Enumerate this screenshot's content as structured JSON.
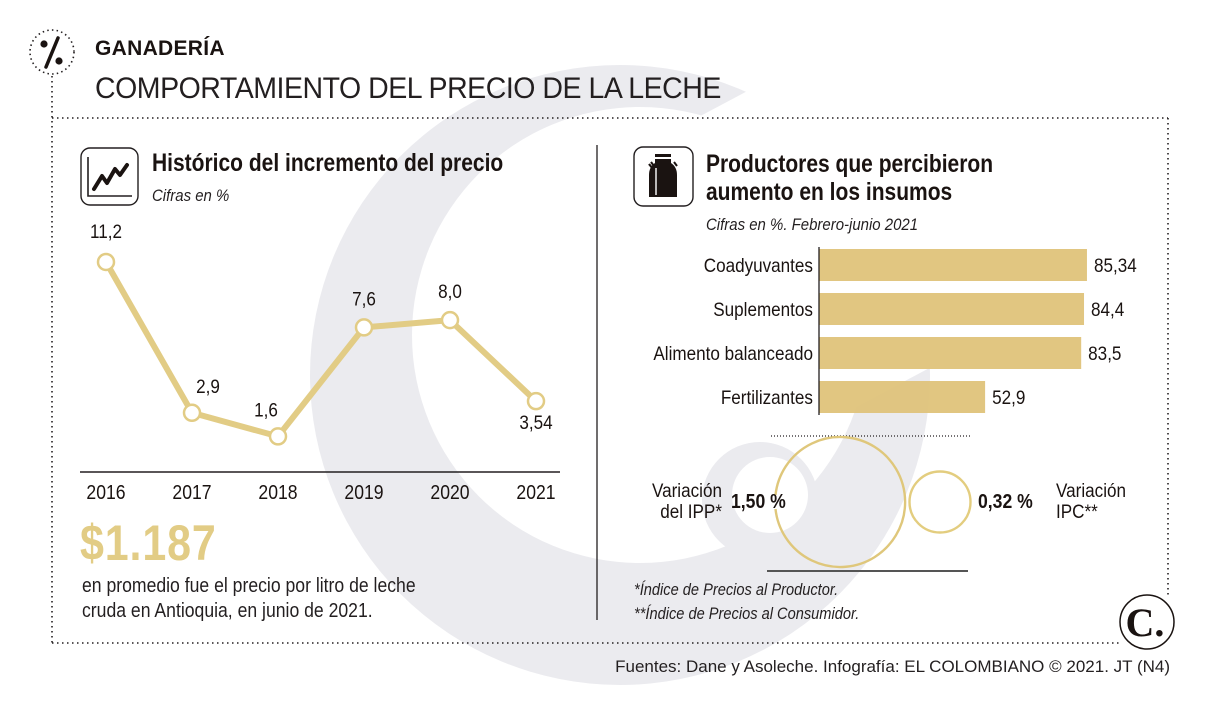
{
  "header": {
    "section_icon": "percent-icon",
    "kicker": "GANADERÍA",
    "headline": "COMPORTAMIENTO DEL PRECIO DE LA LECHE"
  },
  "colors": {
    "accent_gold": "#e2cc85",
    "bar_gold": "#dfc37a",
    "watermark_gray": "#ebebef",
    "text_dark": "#1a1311"
  },
  "left_panel": {
    "icon": "line-chart-icon",
    "title": "Histórico del incremento del precio",
    "subtitle": "Cifras en %",
    "price_highlight": "$1.187",
    "description_line1": "en promedio fue el precio por litro de leche",
    "description_line2": "cruda en Antioquia, en junio de 2021."
  },
  "right_panel": {
    "icon": "milk-can-icon",
    "title_line1": "Productores que percibieron",
    "title_line2": "aumento en los insumos",
    "subtitle": "Cifras en %. Febrero-junio 2021",
    "ipp": {
      "label_line1": "Variación",
      "label_line2": "del IPP*",
      "value": "1,50 %",
      "numeric": 1.5
    },
    "ipc": {
      "label_line1": "Variación",
      "label_line2": "IPC**",
      "value": "0,32 %",
      "numeric": 0.32
    },
    "footnote1": "*Índice de Precios al Productor.",
    "footnote2": "**Índice de Precios al Consumidor."
  },
  "footer": {
    "credits": "Fuentes: Dane y Asoleche. Infografía: EL COLOMBIANO © 2021. JT (N4)",
    "logo_letter": "C."
  },
  "chart_data": [
    {
      "type": "line",
      "title": "Histórico del incremento del precio",
      "subtitle": "Cifras en %",
      "xlabel": "",
      "ylabel": "",
      "categories": [
        "2016",
        "2017",
        "2018",
        "2019",
        "2020",
        "2021"
      ],
      "values": [
        11.2,
        2.9,
        1.6,
        7.6,
        8.0,
        3.54
      ],
      "value_labels": [
        "11,2",
        "2,9",
        "1,6",
        "7,6",
        "8,0",
        "3,54"
      ],
      "ylim": [
        0,
        12
      ],
      "grid": false,
      "legend": "none"
    },
    {
      "type": "bar",
      "orientation": "horizontal",
      "title": "Productores que percibieron aumento en los insumos",
      "subtitle": "Cifras en %. Febrero-junio 2021",
      "categories": [
        "Coadyuvantes",
        "Suplementos",
        "Alimento balanceado",
        "Fertilizantes"
      ],
      "values": [
        85.34,
        84.4,
        83.5,
        52.9
      ],
      "value_labels": [
        "85,34",
        "84,4",
        "83,5",
        "52,9"
      ],
      "xlim": [
        0,
        100
      ],
      "grid": false,
      "legend": "none"
    }
  ]
}
